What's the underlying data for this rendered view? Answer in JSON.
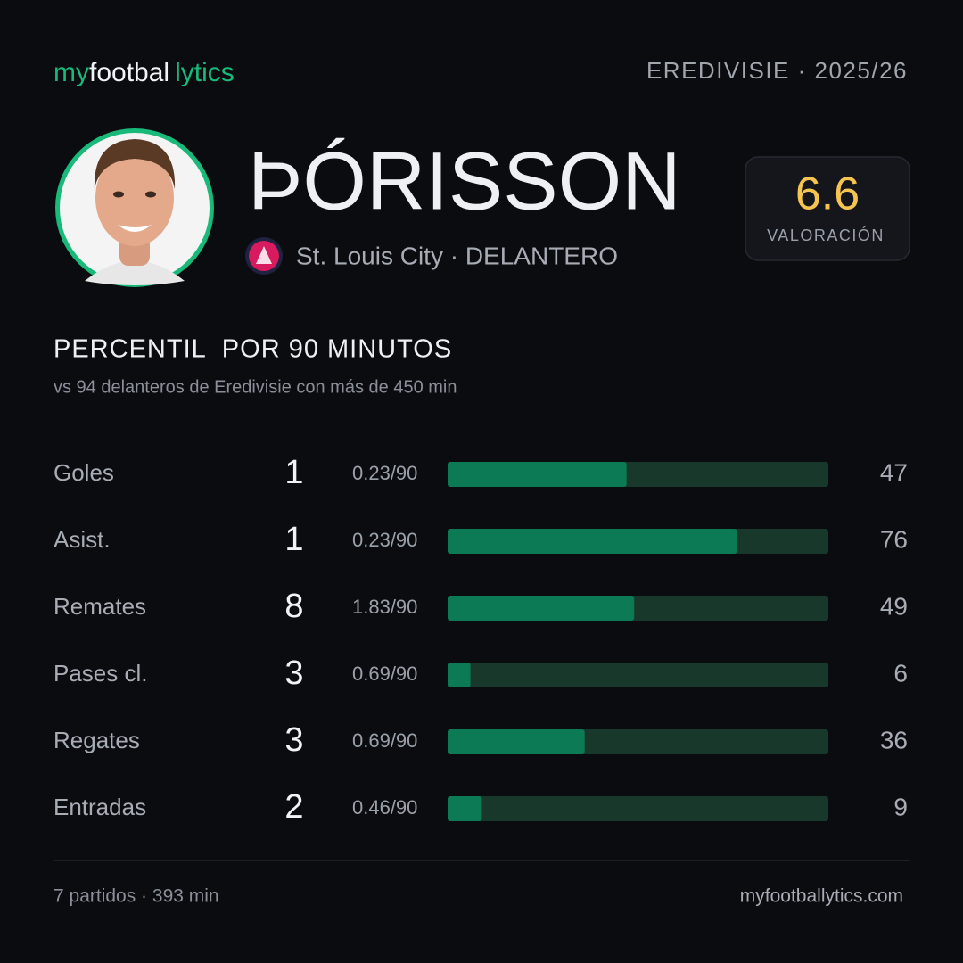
{
  "brand": {
    "part1": "my",
    "part2": "footbal",
    "part3": "lytics"
  },
  "league": "EREDIVISIE · 2025/26",
  "player": {
    "name": "ÞÓRISSON",
    "club": "St. Louis City · DELANTERO"
  },
  "rating": {
    "value": 6.6,
    "label": "VALORACIÓN"
  },
  "section": {
    "title": "PERCENTIL  POR 90 MINUTOS",
    "subtitle": "vs 94 delanteros de Eredivisie con más de 450 min"
  },
  "stats": {
    "xlim": [
      0,
      100
    ],
    "rows": [
      {
        "label": "Goles",
        "total": 1,
        "per90": "0.23/90",
        "percentile": 47
      },
      {
        "label": "Asist.",
        "total": 1,
        "per90": "0.23/90",
        "percentile": 76
      },
      {
        "label": "Remates",
        "total": 8,
        "per90": "1.83/90",
        "percentile": 49
      },
      {
        "label": "Pases cl.",
        "total": 3,
        "per90": "0.69/90",
        "percentile": 6
      },
      {
        "label": "Regates",
        "total": 3,
        "per90": "0.69/90",
        "percentile": 36
      },
      {
        "label": "Entradas",
        "total": 2,
        "per90": "0.46/90",
        "percentile": 9
      }
    ]
  },
  "footer": {
    "left": "7 partidos · 393 min",
    "right": "myfootballytics.com"
  }
}
